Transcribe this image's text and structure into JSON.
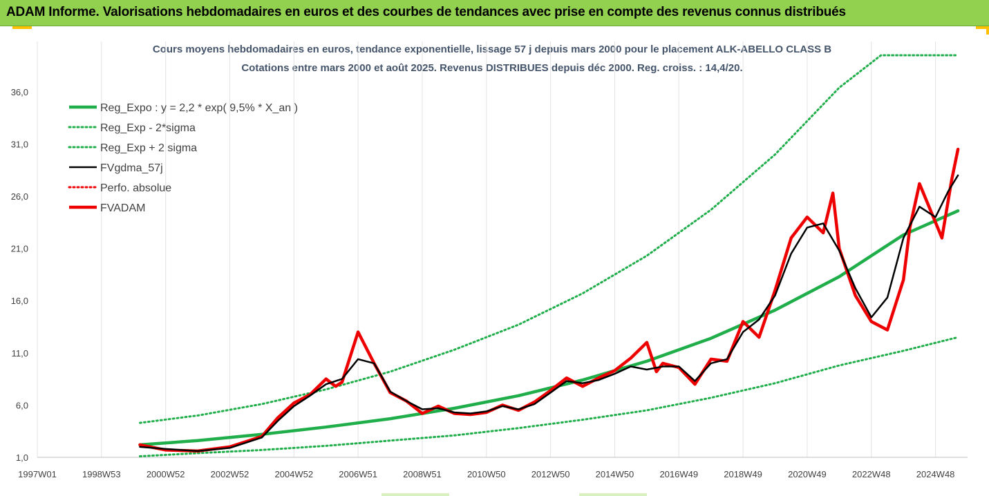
{
  "banner": {
    "title": "ADAM Informe. Valorisations hebdomadaires en euros et des courbes de tendances avec prise en compte des revenus connus distribués"
  },
  "colors": {
    "banner_bg": "#92d050",
    "reg_expo": "#1fae4a",
    "fvgdma": "#000000",
    "fvadam": "#ee0000",
    "corner_accent": "#ffc000"
  },
  "chart_data": {
    "type": "line",
    "title": "Cours moyens hebdomadaires en euros, tendance exponentielle, lissage 57 j depuis mars 2000 pour le placement ALK-ABELLO CLASS B",
    "subtitle": "Cotations entre mars 2000 et août 2025. Revenus DISTRIBUES depuis déc 2000. Reg. croiss. : 14,4/20.",
    "xlabel": "",
    "ylabel": "",
    "x_range": [
      1997.0,
      2026.0
    ],
    "ylim": [
      1.0,
      39.5
    ],
    "y_ticks": [
      "1,0",
      "6,0",
      "11,0",
      "16,0",
      "21,0",
      "26,0",
      "31,0",
      "36,0"
    ],
    "x_ticks": [
      "1997W01",
      "1998W53",
      "2000W52",
      "2002W52",
      "2004W52",
      "2006W51",
      "2008W51",
      "2010W50",
      "2012W50",
      "2014W50",
      "2016W49",
      "2018W49",
      "2020W49",
      "2022W48",
      "2024W48"
    ],
    "x_tick_years": [
      1997.0,
      1999.0,
      2001.0,
      2003.0,
      2005.0,
      2007.0,
      2009.0,
      2011.0,
      2013.0,
      2015.0,
      2017.0,
      2019.0,
      2021.0,
      2023.0,
      2025.0
    ],
    "grid": "vertical",
    "legend_position": "top-left",
    "legend": [
      {
        "label": "Reg_Expo : y = 2,2 * exp( 9,5% *  X_an )",
        "color": "#1fae4a",
        "style": "solid-thick"
      },
      {
        "label": "Reg_Exp - 2*sigma",
        "color": "#1fae4a",
        "style": "dotted"
      },
      {
        "label": "Reg_Exp + 2 sigma",
        "color": "#1fae4a",
        "style": "dotted"
      },
      {
        "label": "FVgdma_57j",
        "color": "#000000",
        "style": "solid"
      },
      {
        "label": "Perfo. absolue",
        "color": "#ee0000",
        "style": "dotted"
      },
      {
        "label": "FVADAM",
        "color": "#ee0000",
        "style": "solid-thick"
      }
    ],
    "series": [
      {
        "name": "Reg_Expo : y = 2,2 * exp( 9,5% *  X_an )",
        "x": [
          2000.2,
          2002.0,
          2004.0,
          2006.0,
          2008.0,
          2010.0,
          2012.0,
          2014.0,
          2016.0,
          2018.0,
          2020.0,
          2022.0,
          2024.0,
          2025.7
        ],
        "values": [
          2.2,
          2.6,
          3.2,
          3.9,
          4.7,
          5.7,
          6.9,
          8.4,
          10.2,
          12.4,
          15.1,
          18.3,
          22.3,
          24.6
        ]
      },
      {
        "name": "Reg_Exp - 2*sigma",
        "x": [
          2000.2,
          2002.0,
          2004.0,
          2006.0,
          2008.0,
          2010.0,
          2012.0,
          2014.0,
          2016.0,
          2018.0,
          2020.0,
          2022.0,
          2024.0,
          2025.7
        ],
        "values": [
          1.1,
          1.4,
          1.7,
          2.1,
          2.6,
          3.1,
          3.8,
          4.6,
          5.5,
          6.7,
          8.1,
          9.8,
          11.2,
          12.5
        ]
      },
      {
        "name": "Reg_Exp + 2 sigma",
        "x": [
          2000.2,
          2002.0,
          2004.0,
          2006.0,
          2008.0,
          2010.0,
          2012.0,
          2014.0,
          2016.0,
          2018.0,
          2020.0,
          2022.0,
          2023.3,
          2025.7
        ],
        "values": [
          4.3,
          5.0,
          6.1,
          7.5,
          9.2,
          11.3,
          13.7,
          16.7,
          20.3,
          24.7,
          30.0,
          36.4,
          39.5,
          39.5
        ]
      },
      {
        "name": "FVgdma_57j",
        "x": [
          2000.2,
          2001.0,
          2002.0,
          2003.0,
          2004.0,
          2004.5,
          2005.0,
          2005.5,
          2006.0,
          2006.5,
          2007.0,
          2007.5,
          2008.0,
          2008.5,
          2009.0,
          2009.5,
          2010.0,
          2010.5,
          2011.0,
          2011.5,
          2012.0,
          2012.5,
          2013.0,
          2013.5,
          2014.0,
          2014.5,
          2015.0,
          2015.5,
          2016.0,
          2016.5,
          2017.0,
          2017.5,
          2018.0,
          2018.5,
          2019.0,
          2019.5,
          2020.0,
          2020.5,
          2021.0,
          2021.5,
          2022.0,
          2022.5,
          2023.0,
          2023.5,
          2024.0,
          2024.5,
          2025.0,
          2025.4,
          2025.7
        ],
        "values": [
          2.0,
          1.8,
          1.6,
          1.9,
          2.9,
          4.5,
          5.9,
          6.9,
          8.0,
          8.5,
          10.4,
          10.0,
          7.3,
          6.4,
          5.6,
          5.7,
          5.3,
          5.2,
          5.4,
          5.9,
          5.6,
          6.1,
          7.2,
          8.3,
          8.1,
          8.4,
          9.0,
          9.7,
          9.4,
          9.7,
          9.7,
          8.3,
          10.0,
          10.4,
          13.0,
          14.2,
          16.5,
          20.5,
          23.0,
          23.4,
          20.8,
          17.2,
          14.4,
          16.3,
          22.0,
          25.0,
          24.0,
          26.5,
          28.0
        ]
      },
      {
        "name": "FVADAM",
        "x": [
          2000.2,
          2001.0,
          2002.0,
          2003.0,
          2004.0,
          2004.5,
          2005.0,
          2005.5,
          2006.0,
          2006.3,
          2006.5,
          2007.0,
          2007.5,
          2008.0,
          2008.5,
          2009.0,
          2009.5,
          2010.0,
          2010.5,
          2011.0,
          2011.5,
          2012.0,
          2012.5,
          2013.0,
          2013.5,
          2014.0,
          2014.5,
          2015.0,
          2015.5,
          2016.0,
          2016.3,
          2016.5,
          2017.0,
          2017.5,
          2018.0,
          2018.5,
          2019.0,
          2019.5,
          2020.0,
          2020.5,
          2021.0,
          2021.5,
          2021.8,
          2022.0,
          2022.5,
          2023.0,
          2023.5,
          2024.0,
          2024.2,
          2024.5,
          2025.0,
          2025.2,
          2025.5,
          2025.7
        ],
        "values": [
          2.2,
          1.7,
          1.6,
          2.0,
          3.0,
          4.8,
          6.2,
          7.0,
          8.5,
          7.8,
          8.2,
          13.0,
          10.0,
          7.2,
          6.4,
          5.2,
          5.9,
          5.2,
          5.1,
          5.3,
          6.0,
          5.5,
          6.3,
          7.4,
          8.6,
          7.8,
          8.6,
          9.3,
          10.5,
          12.0,
          9.2,
          10.0,
          9.6,
          8.0,
          10.4,
          10.2,
          14.0,
          12.5,
          17.0,
          22.0,
          24.0,
          22.5,
          26.3,
          21.0,
          16.5,
          14.0,
          13.2,
          18.0,
          23.0,
          27.2,
          23.5,
          22.0,
          27.5,
          30.5
        ]
      }
    ]
  }
}
